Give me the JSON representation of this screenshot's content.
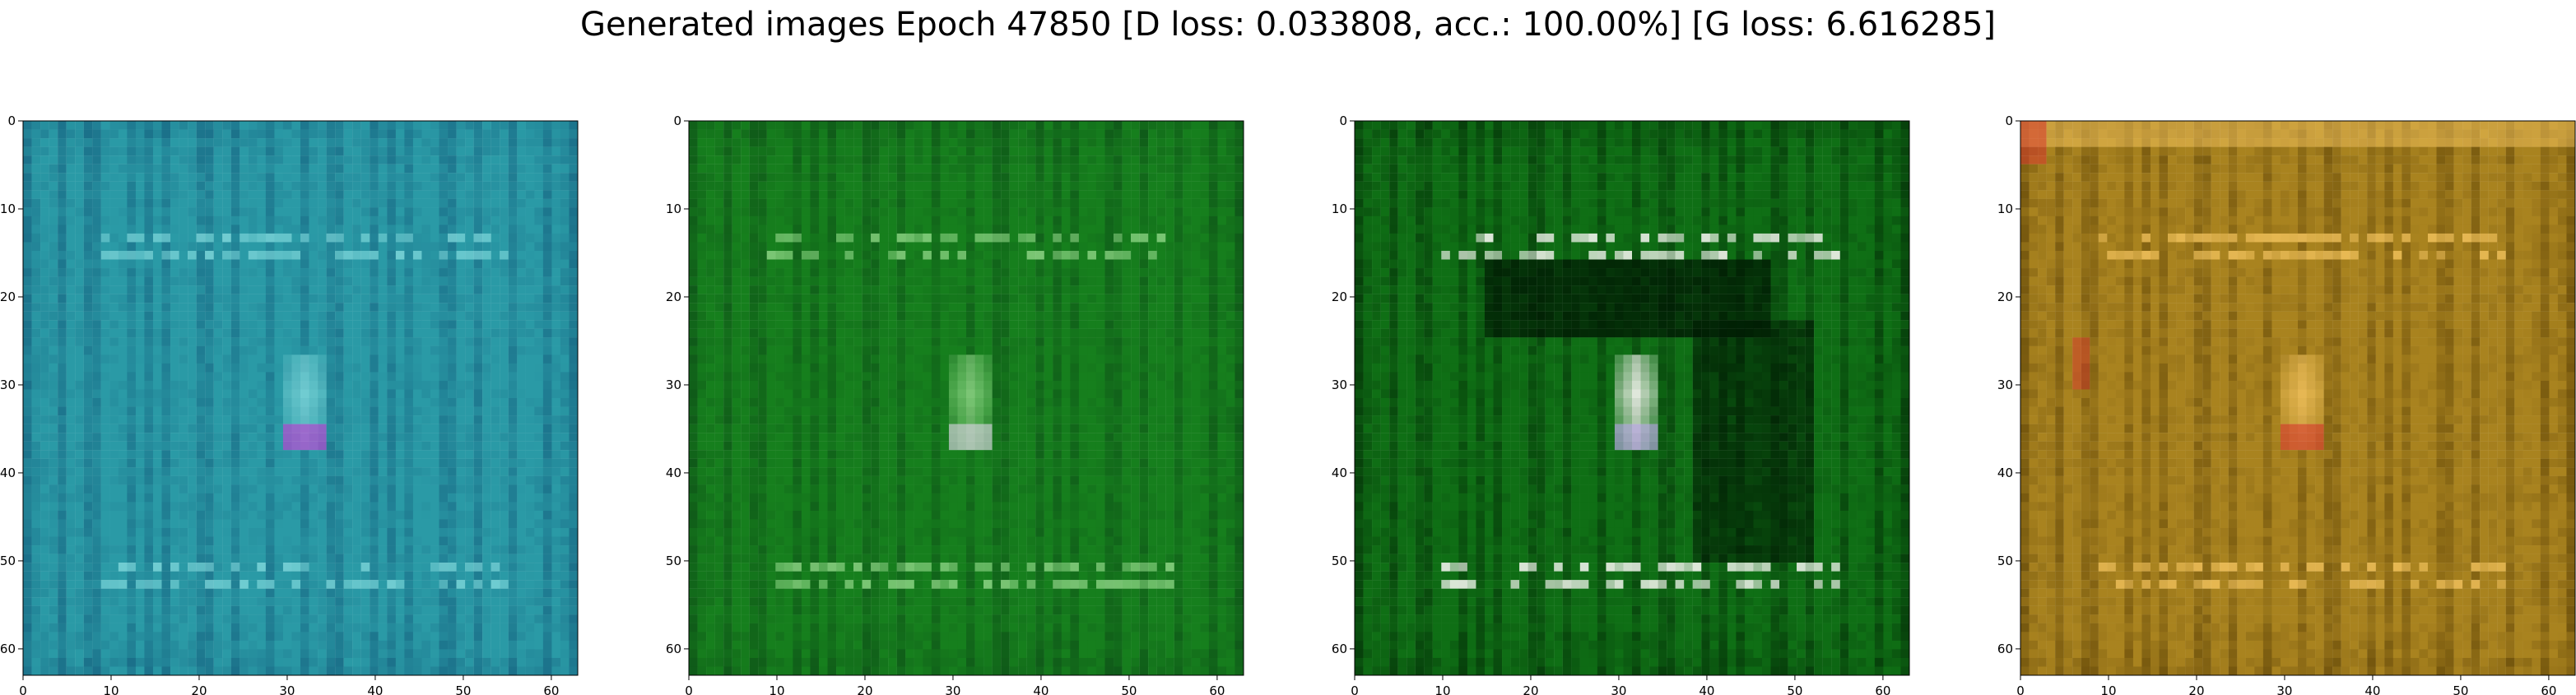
{
  "figure": {
    "title": "Generated images Epoch 47850 [D loss: 0.033808, acc.: 100.00%] [G loss: 6.616285]"
  },
  "axis": {
    "x_ticks": [
      "0",
      "10",
      "20",
      "30",
      "40",
      "50",
      "60"
    ],
    "y_ticks": [
      "0",
      "10",
      "20",
      "30",
      "40",
      "50",
      "60"
    ],
    "range": [
      0,
      63
    ]
  },
  "panels": [
    {
      "name": "generated-image-1",
      "palette": {
        "base": "#2a9aa6",
        "dark": "#0f4f73",
        "light": "#78d3d7",
        "accent": "#d22ad6"
      }
    },
    {
      "name": "generated-image-2",
      "palette": {
        "base": "#167f1d",
        "dark": "#0a3d15",
        "light": "#87d07f",
        "accent": "#f4dcff"
      }
    },
    {
      "name": "generated-image-3",
      "palette": {
        "base": "#0f6f15",
        "dark": "#001a03",
        "light": "#f6f6f1",
        "accent": "#c9a8ff"
      }
    },
    {
      "name": "generated-image-4",
      "palette": {
        "base": "#a9831f",
        "dark": "#4b3300",
        "light": "#f0c05a",
        "accent": "#d92e2e"
      }
    }
  ]
}
